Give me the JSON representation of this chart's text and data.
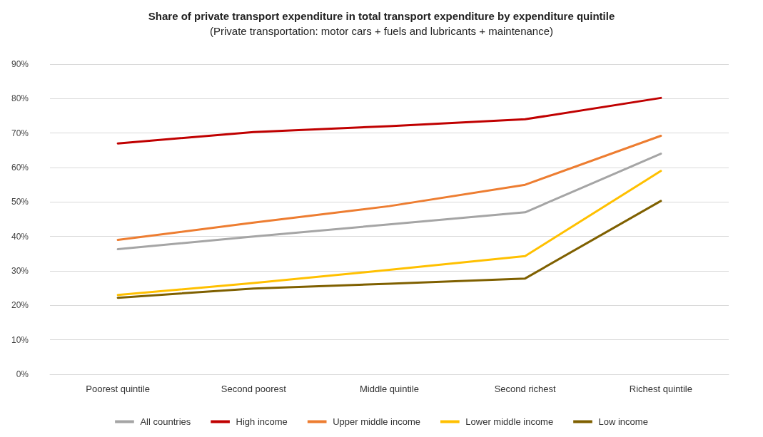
{
  "chart_data": {
    "type": "line",
    "title": "Share of private transport expenditure in total transport expenditure by expenditure quintile",
    "subtitle": "(Private transportation: motor cars + fuels and lubricants + maintenance)",
    "categories": [
      "Poorest quintile",
      "Second poorest",
      "Middle quintile",
      "Second richest",
      "Richest quintile"
    ],
    "series": [
      {
        "name": "All countries",
        "color": "#a5a5a5",
        "values": [
          36.3,
          40,
          43.5,
          47,
          64
        ]
      },
      {
        "name": "High income",
        "color": "#c00000",
        "values": [
          67,
          70.3,
          72,
          74,
          80.2
        ]
      },
      {
        "name": "Upper middle income",
        "color": "#ed7d31",
        "values": [
          39,
          44,
          48.8,
          55,
          69.2
        ]
      },
      {
        "name": "Lower middle income",
        "color": "#ffc000",
        "values": [
          23,
          26.5,
          30.3,
          34.3,
          59
        ]
      },
      {
        "name": "Low income",
        "color": "#7f6000",
        "values": [
          22.2,
          24.9,
          26.3,
          27.8,
          50.3
        ]
      }
    ],
    "ylim": [
      0,
      90
    ],
    "yticks": [
      {
        "value": 0,
        "label": "0%"
      },
      {
        "value": 10,
        "label": "10%"
      },
      {
        "value": 20,
        "label": "20%"
      },
      {
        "value": 30,
        "label": "30%"
      },
      {
        "value": 40,
        "label": "40%"
      },
      {
        "value": 50,
        "label": "50%"
      },
      {
        "value": 60,
        "label": "60%"
      },
      {
        "value": 70,
        "label": "70%"
      },
      {
        "value": 80,
        "label": "80%"
      },
      {
        "value": 90,
        "label": "90%"
      }
    ],
    "grid": "y",
    "legend": "bottom",
    "marker": "none",
    "line_style": "solid"
  }
}
